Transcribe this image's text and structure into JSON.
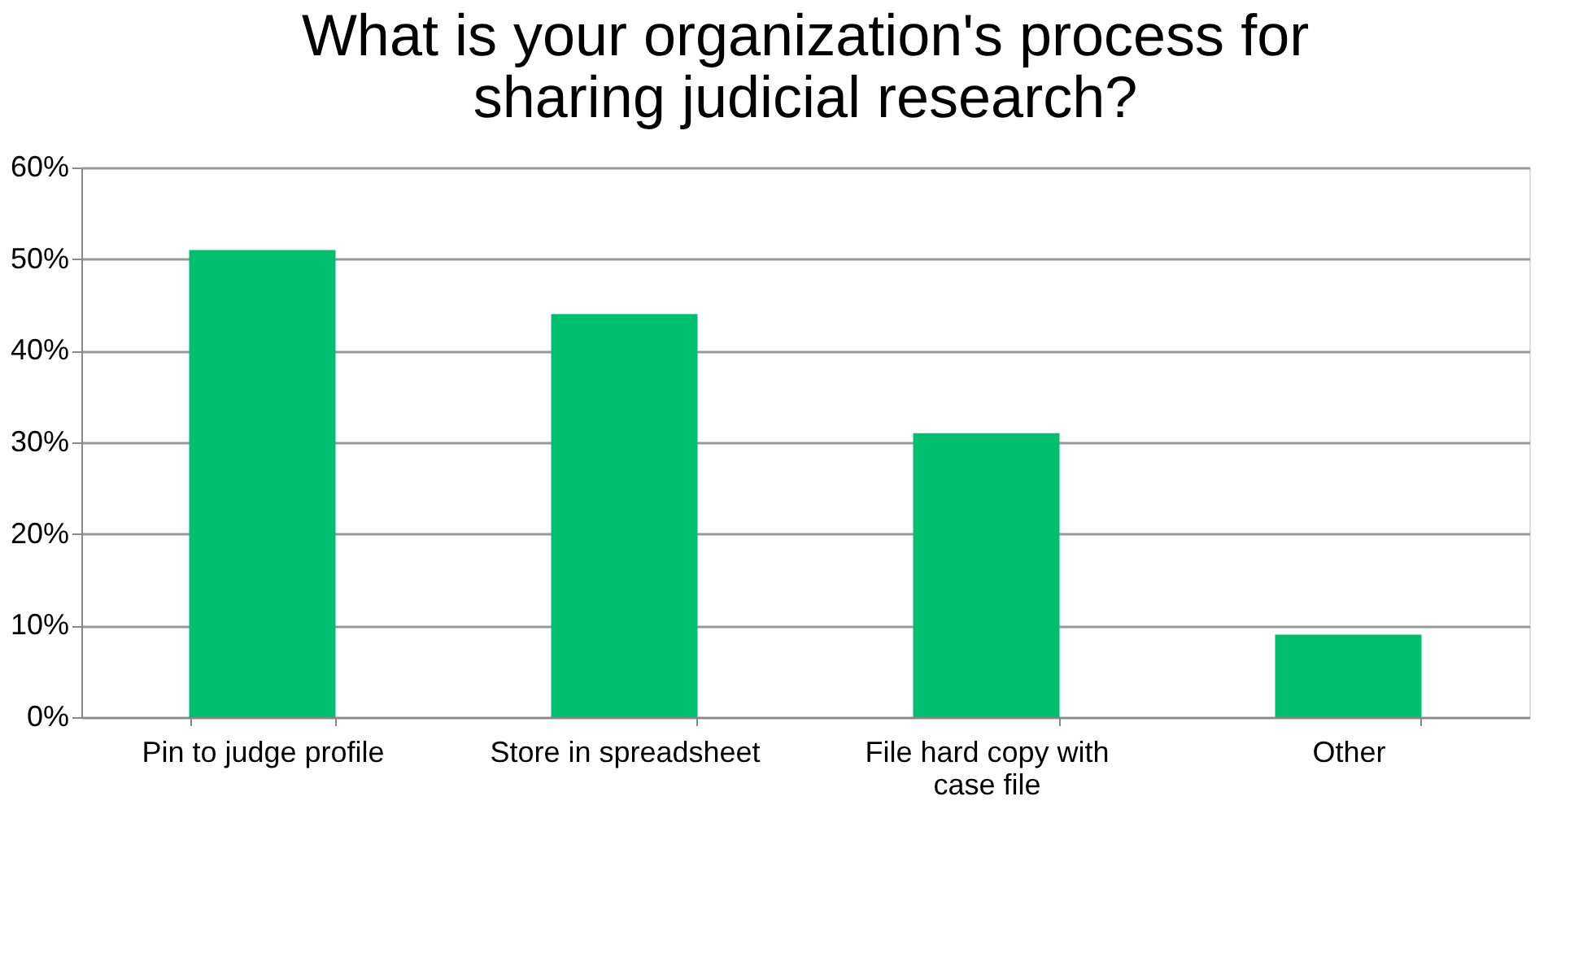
{
  "chart_data": {
    "type": "bar",
    "title": "What is your organization's process for sharing judicial research?",
    "categories": [
      "Pin to judge profile",
      "Store in spreadsheet",
      "File hard copy with case file",
      "Other"
    ],
    "values": [
      51,
      44,
      31,
      9
    ],
    "color": "#00bf6f",
    "ylim": [
      0,
      60
    ],
    "yticks": [
      {
        "value": 0,
        "label": "0%"
      },
      {
        "value": 10,
        "label": "10%"
      },
      {
        "value": 20,
        "label": "20%"
      },
      {
        "value": 30,
        "label": "30%"
      },
      {
        "value": 40,
        "label": "40%"
      },
      {
        "value": 50,
        "label": "50%"
      },
      {
        "value": 60,
        "label": "60%"
      }
    ],
    "grid": "y"
  }
}
